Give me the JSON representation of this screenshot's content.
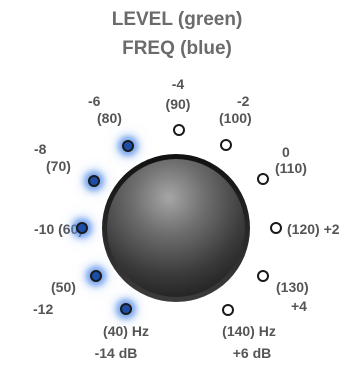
{
  "title": {
    "line1": "LEVEL (green)",
    "line2": "FREQ (blue)"
  },
  "colors": {
    "led_active": "#1e4fa8",
    "led_glow": "#4682e6",
    "knob_dark": "#2a2a2a",
    "knob_light": "#9a9a9a"
  },
  "positions": [
    {
      "level": "-14 dB",
      "freq": "(40) Hz",
      "active": true
    },
    {
      "level": "-12",
      "freq": "(50)",
      "active": true
    },
    {
      "level": "-10",
      "freq": "(60)",
      "active": true
    },
    {
      "level": "-8",
      "freq": "(70)",
      "active": true
    },
    {
      "level": "-6",
      "freq": "(80)",
      "active": true
    },
    {
      "level": "-4",
      "freq": "(90)",
      "active": false
    },
    {
      "level": "-2",
      "freq": "(100)",
      "active": false
    },
    {
      "level": "0",
      "freq": "(110)",
      "active": false
    },
    {
      "level": "+2",
      "freq": "(120)",
      "active": false
    },
    {
      "level": "+4",
      "freq": "(130)",
      "active": false
    },
    {
      "level": "+6 dB",
      "freq": "(140) Hz",
      "active": false
    }
  ],
  "labels": {
    "p0_level": "-14 dB",
    "p0_freq": "(40) Hz",
    "p1_level": "-12",
    "p1_freq": "(50)",
    "p2": "-10 (60)",
    "p3_level": "-8",
    "p3_freq": "(70)",
    "p4_level": "-6",
    "p4_freq": "(80)",
    "p5_level": "-4",
    "p5_freq": "(90)",
    "p6_level": "-2",
    "p6_freq": "(100)",
    "p7_level": "0",
    "p7_freq": "(110)",
    "p8": "(120) +2",
    "p9_freq": "(130)",
    "p9_level": "+4",
    "p10_freq": "(140) Hz",
    "p10_level": "+6 dB"
  }
}
